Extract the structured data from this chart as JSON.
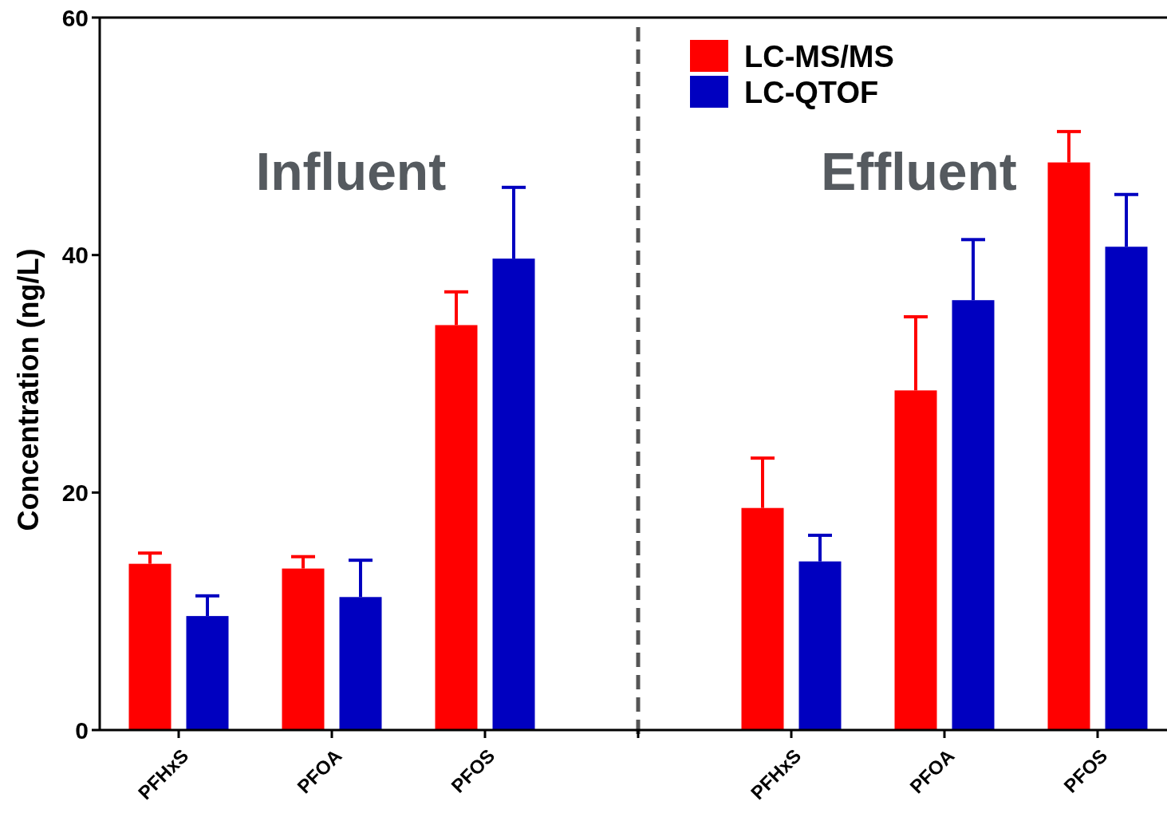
{
  "chart_data": {
    "type": "bar",
    "ylabel": "Concentration (ng/L)",
    "categories": [
      "PFHxS",
      "PFOA",
      "PFOS",
      null,
      "PFHxS",
      "PFOA",
      "PFOS"
    ],
    "series": [
      {
        "name": "LC-MS/MS",
        "color": "#ff0000",
        "values": [
          14.0,
          13.6,
          34.1,
          null,
          18.7,
          28.6,
          47.8
        ],
        "errors": [
          [
            14.0,
            14.9
          ],
          [
            13.6,
            14.6
          ],
          [
            34.1,
            36.9
          ],
          null,
          [
            18.7,
            22.9
          ],
          [
            28.6,
            34.8
          ],
          [
            47.8,
            50.4
          ]
        ]
      },
      {
        "name": "LC-QTOF",
        "color": "#0000c0",
        "values": [
          9.6,
          11.2,
          39.7,
          null,
          14.2,
          36.2,
          40.7
        ],
        "errors": [
          [
            9.6,
            11.3
          ],
          [
            11.2,
            14.3
          ],
          [
            39.7,
            45.7
          ],
          null,
          [
            14.2,
            16.4
          ],
          [
            36.2,
            41.3
          ],
          [
            40.7,
            45.1
          ]
        ]
      }
    ],
    "ylim": [
      0,
      60
    ],
    "yticks": [
      0,
      20,
      40,
      60
    ],
    "annotations": [
      "Influent",
      "Effluent"
    ],
    "legend": "top right"
  }
}
